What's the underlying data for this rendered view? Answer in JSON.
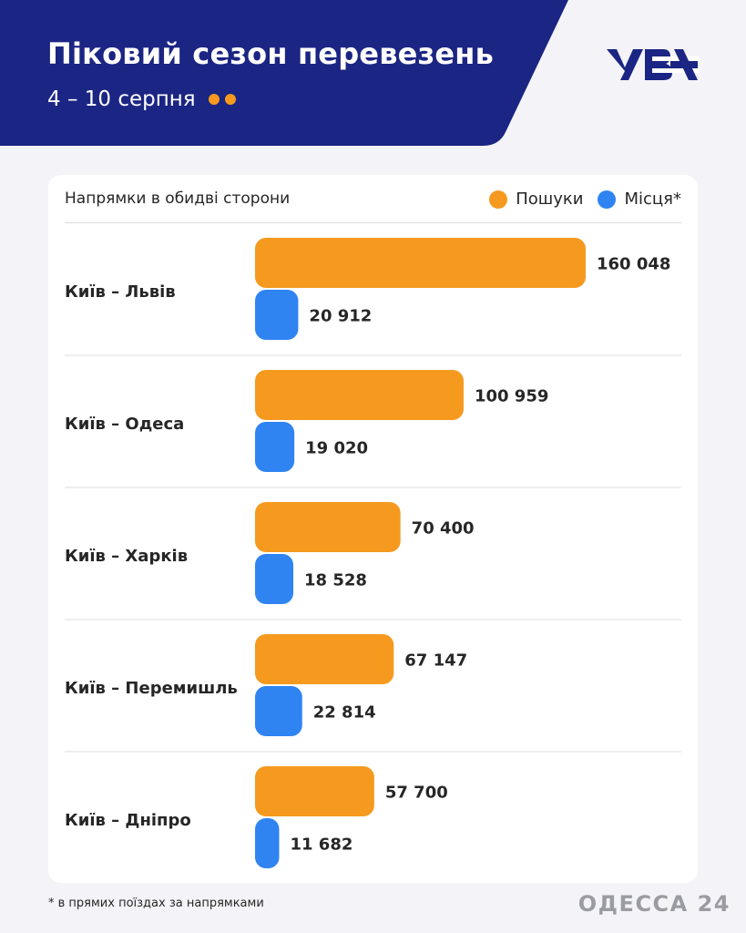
{
  "header": {
    "title": "Піковий сезон перевезень",
    "subtitle": "4 – 10 серпня",
    "logo": "УЗ"
  },
  "card": {
    "heading": "Напрямки в обидві сторони"
  },
  "footnote": "* в прямих поїздах за напрямками",
  "brand": "ОДЕССА 24",
  "colors": {
    "header_bg": "#1b2583",
    "searches": "#f59a1f",
    "seats": "#2f84f2",
    "text": "#262626"
  },
  "chart_data": {
    "type": "bar",
    "orientation": "horizontal",
    "legend_position": "top-right",
    "categories": [
      "Київ – Львів",
      "Київ – Одеса",
      "Київ – Харків",
      "Київ – Перемишль",
      "Київ – Дніпро"
    ],
    "series": [
      {
        "name": "Пошуки",
        "values": [
          160048,
          100959,
          70400,
          67147,
          57700
        ],
        "labels": [
          "160 048",
          "100 959",
          "70 400",
          "67 147",
          "57 700"
        ]
      },
      {
        "name": "Місця*",
        "values": [
          20912,
          19020,
          18528,
          22814,
          11682
        ],
        "labels": [
          "20 912",
          "19 020",
          "18 528",
          "22 814",
          "11 682"
        ]
      }
    ]
  }
}
